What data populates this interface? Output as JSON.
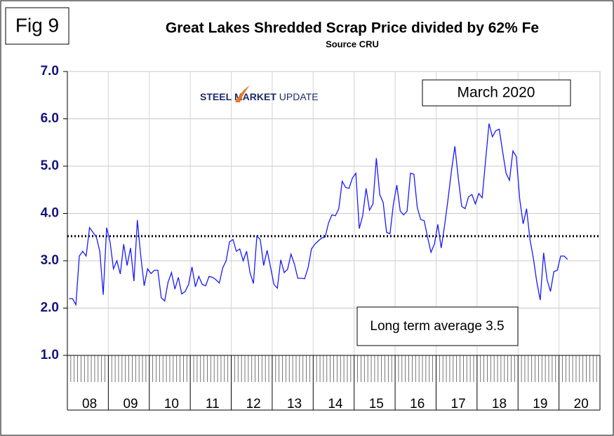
{
  "chart_data": {
    "type": "line",
    "figure_label": "Fig 9",
    "title": "Great Lakes Shredded Scrap Price divided by 62% Fe",
    "subtitle": "Source CRU",
    "logo": [
      "STEEL",
      "MARKET",
      "UPDATE"
    ],
    "date_note": "March 2020",
    "average_label": "Long term average 3.5",
    "average_value": 3.52,
    "color": "#1a1aff",
    "grid": true,
    "ylim": [
      1,
      7
    ],
    "yticks": [
      {
        "value": 1,
        "label": "1.0"
      },
      {
        "value": 2,
        "label": "2.0"
      },
      {
        "value": 3,
        "label": "3.0"
      },
      {
        "value": 4,
        "label": "4.0"
      },
      {
        "value": 5,
        "label": "5.0"
      },
      {
        "value": 6,
        "label": "6.0"
      },
      {
        "value": 7,
        "label": "7.0"
      }
    ],
    "categories": [
      null,
      null,
      null,
      null,
      null,
      null,
      "08",
      null,
      null,
      null,
      null,
      null,
      null,
      null,
      null,
      null,
      null,
      null,
      "09",
      null,
      null,
      null,
      null,
      null,
      null,
      null,
      null,
      null,
      null,
      null,
      "10",
      null,
      null,
      null,
      null,
      null,
      null,
      null,
      null,
      null,
      null,
      null,
      "11",
      null,
      null,
      null,
      null,
      null,
      null,
      null,
      null,
      null,
      null,
      null,
      "12",
      null,
      null,
      null,
      null,
      null,
      null,
      null,
      null,
      null,
      null,
      null,
      "13",
      null,
      null,
      null,
      null,
      null,
      null,
      null,
      null,
      null,
      null,
      null,
      "14",
      null,
      null,
      null,
      null,
      null,
      null,
      null,
      null,
      null,
      null,
      null,
      "15",
      null,
      null,
      null,
      null,
      null,
      null,
      null,
      null,
      null,
      null,
      null,
      "16",
      null,
      null,
      null,
      null,
      null,
      null,
      null,
      null,
      null,
      null,
      null,
      "17",
      null,
      null,
      null,
      null,
      null,
      null,
      null,
      null,
      null,
      null,
      null,
      "18",
      null,
      null,
      null,
      null,
      null,
      null,
      null,
      null,
      null,
      null,
      null,
      "19",
      null,
      null,
      null,
      null,
      null,
      null,
      null,
      null,
      null,
      null,
      null,
      "20",
      null,
      null,
      null,
      null,
      null
    ],
    "values": [
      2.2,
      2.2,
      2.07,
      3.1,
      3.2,
      3.1,
      3.7,
      3.6,
      3.5,
      3.2,
      2.28,
      3.7,
      3.4,
      2.83,
      3.0,
      2.72,
      3.35,
      2.9,
      3.27,
      2.57,
      3.86,
      3.1,
      2.47,
      2.83,
      2.73,
      2.8,
      2.8,
      2.22,
      2.15,
      2.55,
      2.75,
      2.4,
      2.65,
      2.3,
      2.35,
      2.5,
      2.87,
      2.45,
      2.67,
      2.5,
      2.47,
      2.67,
      2.65,
      2.6,
      2.53,
      2.85,
      3.0,
      3.4,
      3.45,
      3.2,
      3.25,
      3.0,
      3.2,
      2.75,
      2.52,
      3.52,
      3.45,
      2.9,
      3.22,
      2.87,
      2.5,
      2.42,
      3.02,
      2.75,
      2.82,
      3.14,
      2.93,
      2.63,
      2.63,
      2.62,
      2.85,
      3.25,
      3.35,
      3.42,
      3.48,
      3.5,
      3.8,
      3.97,
      3.95,
      4.1,
      4.68,
      4.55,
      4.53,
      4.75,
      4.85,
      3.68,
      3.95,
      4.53,
      4.07,
      4.2,
      5.17,
      4.4,
      4.23,
      3.6,
      3.57,
      4.2,
      4.6,
      4.05,
      3.97,
      4.05,
      4.85,
      4.83,
      4.12,
      3.87,
      3.85,
      3.5,
      3.18,
      3.35,
      3.77,
      3.27,
      3.75,
      4.3,
      4.9,
      5.42,
      4.75,
      4.15,
      4.1,
      4.35,
      4.4,
      4.2,
      4.42,
      4.33,
      5.12,
      5.9,
      5.62,
      5.75,
      5.78,
      5.3,
      4.85,
      4.7,
      5.32,
      5.2,
      4.3,
      3.78,
      4.1,
      3.45,
      3.05,
      2.55,
      2.17,
      3.17,
      2.6,
      2.35,
      2.77,
      2.8,
      3.1,
      3.1,
      3.03,
      null,
      null,
      null,
      null,
      null,
      null,
      null,
      null,
      null
    ]
  }
}
